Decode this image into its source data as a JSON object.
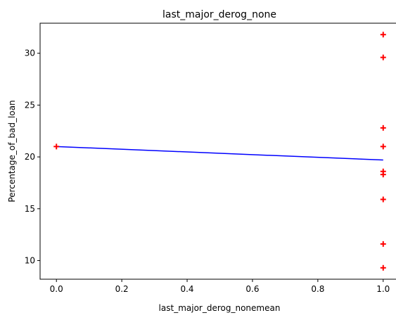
{
  "chart_data": {
    "type": "scatter",
    "title": "last_major_derog_none",
    "xlabel": "last_major_derog_nonemean",
    "ylabel": "Percentage_of_bad_loan",
    "xlim": [
      -0.05,
      1.05
    ],
    "ylim": [
      8.2,
      32.9
    ],
    "x_ticks": [
      0.0,
      0.2,
      0.4,
      0.6,
      0.8,
      1.0
    ],
    "x_tick_labels": [
      "0.0",
      "0.2",
      "0.4",
      "0.6",
      "0.8",
      "1.0"
    ],
    "y_ticks": [
      10,
      15,
      20,
      25,
      30
    ],
    "y_tick_labels": [
      "10",
      "15",
      "20",
      "25",
      "30"
    ],
    "grid": false,
    "series": [
      {
        "kind": "scatter",
        "marker": "plus",
        "color": "#ff0000",
        "points": [
          {
            "x": 0.0,
            "y": 21.0
          },
          {
            "x": 1.0,
            "y": 31.8
          },
          {
            "x": 1.0,
            "y": 29.6
          },
          {
            "x": 1.0,
            "y": 22.8
          },
          {
            "x": 1.0,
            "y": 21.0
          },
          {
            "x": 1.0,
            "y": 18.6
          },
          {
            "x": 1.0,
            "y": 18.3
          },
          {
            "x": 1.0,
            "y": 15.9
          },
          {
            "x": 1.0,
            "y": 11.6
          },
          {
            "x": 1.0,
            "y": 9.3
          }
        ]
      },
      {
        "kind": "line",
        "color": "#0000ff",
        "points": [
          {
            "x": 0.0,
            "y": 21.0
          },
          {
            "x": 1.0,
            "y": 19.7
          }
        ]
      }
    ]
  }
}
